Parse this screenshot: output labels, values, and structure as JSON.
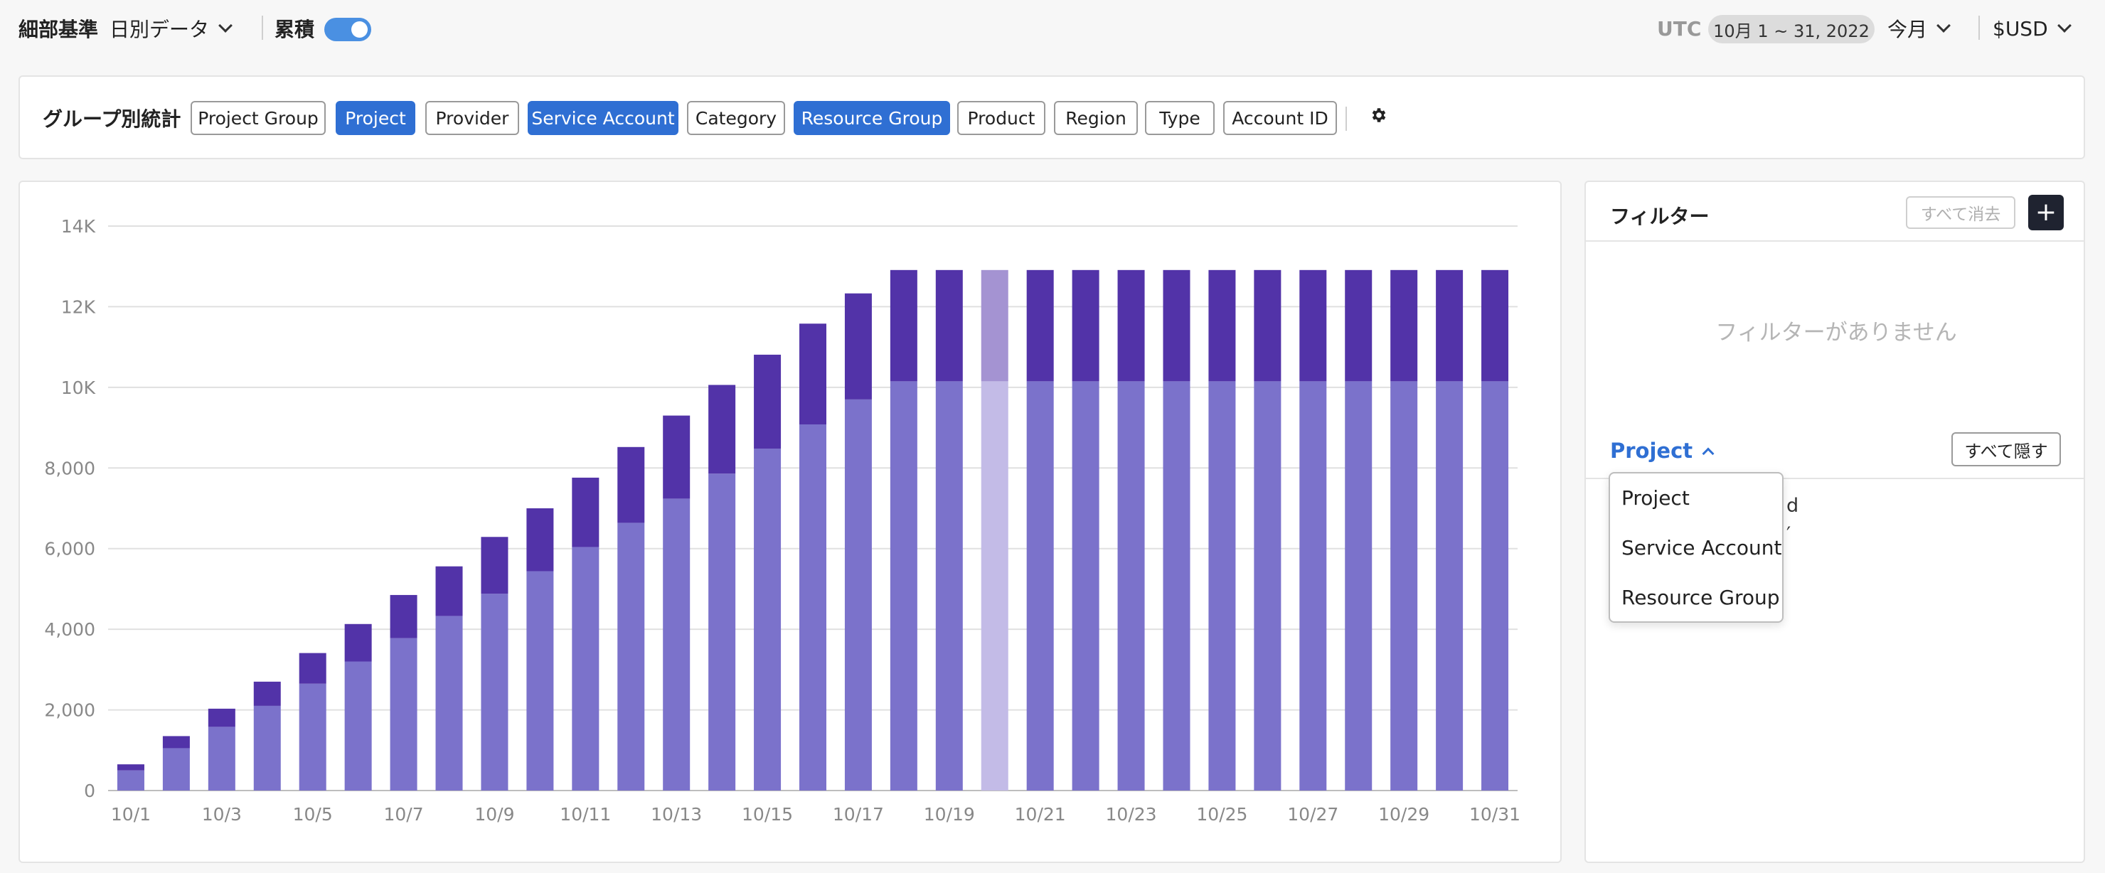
{
  "topbar": {
    "granularity_label": "細部基準",
    "granularity_value": "日別データ",
    "cumulative_label": "累積",
    "cumulative_on": true,
    "timezone": "UTC",
    "date_range": "10月 1 ~ 31, 2022",
    "period": "今月",
    "currency": "$USD"
  },
  "groupbar": {
    "title": "グループ別統計",
    "chips": [
      {
        "label": "Project Group",
        "active": false
      },
      {
        "label": "Project",
        "active": true
      },
      {
        "label": "Provider",
        "active": false
      },
      {
        "label": "Service Account",
        "active": true
      },
      {
        "label": "Category",
        "active": false
      },
      {
        "label": "Resource Group",
        "active": true
      },
      {
        "label": "Product",
        "active": false
      },
      {
        "label": "Region",
        "active": false
      },
      {
        "label": "Type",
        "active": false
      },
      {
        "label": "Account ID",
        "active": false
      }
    ],
    "settings_icon": "gear-icon"
  },
  "filter": {
    "title": "フィルター",
    "clear_all": "すべて消去",
    "add": "+",
    "empty_message": "フィルターがありません",
    "group_by_selected": "Project",
    "hide_all": "すべて隠す",
    "dropdown_options": [
      "Project",
      "Service Account",
      "Resource Group"
    ],
    "partial_behind_1": "d",
    "partial_behind_2": "′"
  },
  "colors": {
    "accent_blue": "#2f6fd3",
    "series_light": "#7b72cb",
    "series_dark": "#5233a8",
    "highlight_light": "#c3bbe7",
    "highlight_dark": "#a493d2"
  },
  "chart_data": {
    "type": "bar",
    "stacked": true,
    "cumulative": true,
    "categories": [
      "10/1",
      "10/2",
      "10/3",
      "10/4",
      "10/5",
      "10/6",
      "10/7",
      "10/8",
      "10/9",
      "10/10",
      "10/11",
      "10/12",
      "10/13",
      "10/14",
      "10/15",
      "10/16",
      "10/17",
      "10/18",
      "10/19",
      "10/20",
      "10/21",
      "10/22",
      "10/23",
      "10/24",
      "10/25",
      "10/26",
      "10/27",
      "10/28",
      "10/29",
      "10/30",
      "10/31"
    ],
    "x_tick_labels": [
      "10/1",
      "10/3",
      "10/5",
      "10/7",
      "10/9",
      "10/11",
      "10/13",
      "10/15",
      "10/17",
      "10/19",
      "10/21",
      "10/23",
      "10/25",
      "10/27",
      "10/29",
      "10/31"
    ],
    "y_ticks": [
      "0",
      "2,000",
      "4,000",
      "6,000",
      "8,000",
      "10,000",
      "12,000",
      "14,000"
    ],
    "y_tick_labels": [
      "0",
      "2,000",
      "4,000",
      "6,000",
      "8,000",
      "10K",
      "12K",
      "14K"
    ],
    "ylim": [
      0,
      14000
    ],
    "grid": true,
    "highlighted_category": "10/20",
    "series": [
      {
        "values": [
          500,
          1050,
          1580,
          2100,
          2650,
          3200,
          3780,
          4330,
          4880,
          5440,
          6040,
          6640,
          7240,
          7860,
          8480,
          9080,
          9700,
          10150,
          10150,
          10150,
          10150,
          10150,
          10150,
          10150,
          10150,
          10150,
          10150,
          10150,
          10150,
          10150,
          10150
        ]
      },
      {
        "values": [
          150,
          300,
          450,
          600,
          760,
          930,
          1070,
          1230,
          1410,
          1560,
          1720,
          1880,
          2060,
          2200,
          2330,
          2500,
          2630,
          2760,
          2760,
          2760,
          2760,
          2760,
          2760,
          2760,
          2760,
          2760,
          2760,
          2760,
          2760,
          2760,
          2760
        ]
      }
    ]
  }
}
